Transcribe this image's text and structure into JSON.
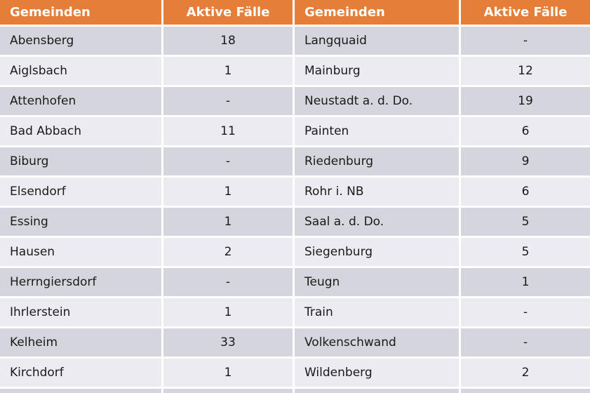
{
  "styles": {
    "accent": "#E57E38",
    "band_dark": "#D5D5DE",
    "band_light": "#EBEBF1",
    "header_text": "#FFFFFF",
    "body_text": "#1A1A1A"
  },
  "chart_data": {
    "type": "table",
    "columns": [
      "Gemeinden",
      "Aktive Fälle",
      "Gemeinden",
      "Aktive Fälle"
    ],
    "rows": [
      [
        "Abensberg",
        "18",
        "Langquaid",
        "-"
      ],
      [
        "Aiglsbach",
        "1",
        "Mainburg",
        "12"
      ],
      [
        "Attenhofen",
        "-",
        "Neustadt a. d. Do.",
        "19"
      ],
      [
        "Bad Abbach",
        "11",
        "Painten",
        "6"
      ],
      [
        "Biburg",
        "-",
        "Riedenburg",
        "9"
      ],
      [
        "Elsendorf",
        "1",
        "Rohr i. NB",
        "6"
      ],
      [
        "Essing",
        "1",
        "Saal a. d. Do.",
        "5"
      ],
      [
        "Hausen",
        "2",
        "Siegenburg",
        "5"
      ],
      [
        "Herrngiersdorf",
        "-",
        "Teugn",
        "1"
      ],
      [
        "Ihrlerstein",
        "1",
        "Train",
        "-"
      ],
      [
        "Kelheim",
        "33",
        "Volkenschwand",
        "-"
      ],
      [
        "Kirchdorf",
        "1",
        "Wildenberg",
        "2"
      ]
    ],
    "layout": {
      "banding": "alternating rows starting dark",
      "value_columns_alignment": "center",
      "name_columns_alignment": "left"
    }
  }
}
